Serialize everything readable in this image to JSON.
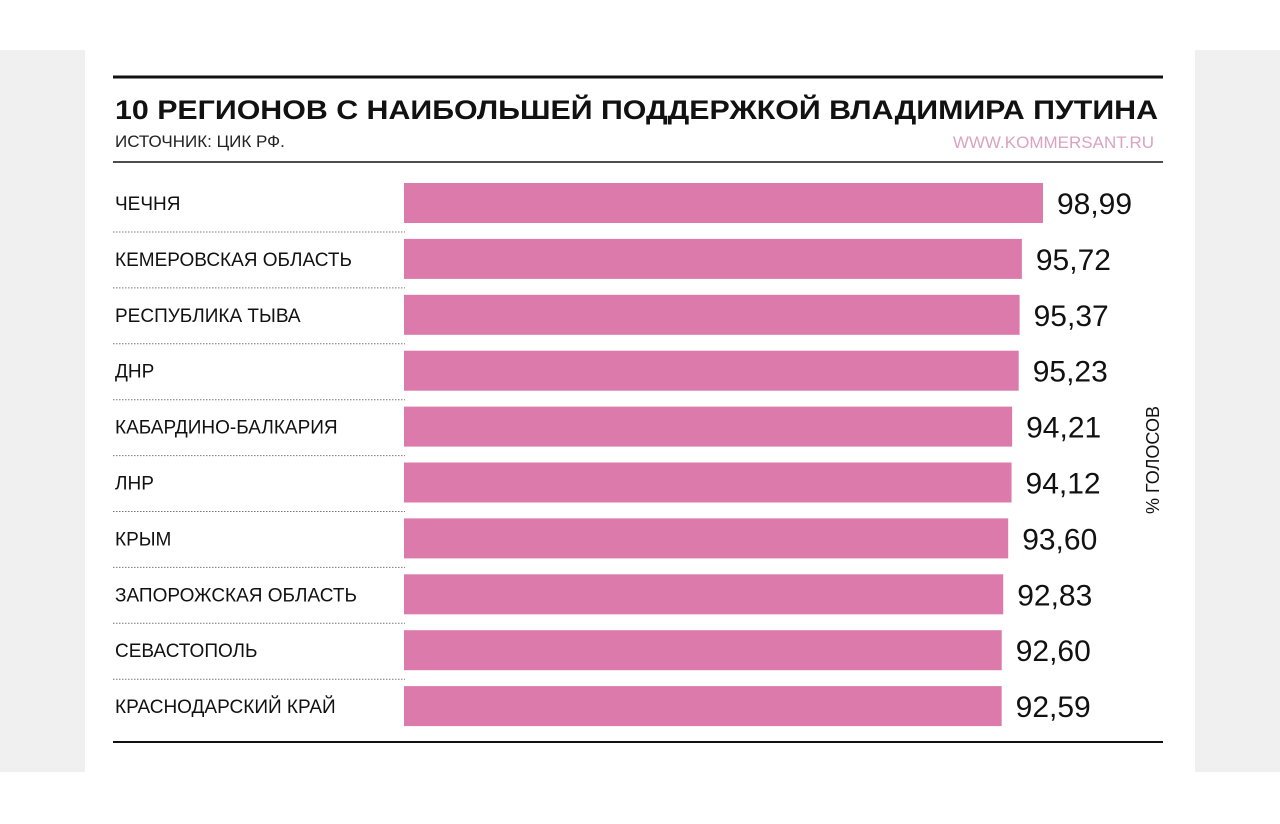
{
  "chart_data": {
    "type": "bar",
    "orientation": "horizontal",
    "title": "10 РЕГИОНОВ С НАИБОЛЬШЕЙ ПОДДЕРЖКОЙ ВЛАДИМИРА ПУТИНА",
    "subtitle": "ИСТОЧНИК: ЦИК РФ.",
    "credit": "WWW.KOMMERSANT.RU",
    "ylabel": "% ГОЛОСОВ",
    "categories": [
      "ЧЕЧНЯ",
      "КЕМЕРОВСКАЯ ОБЛАСТЬ",
      "РЕСПУБЛИКА ТЫВА",
      "ДНР",
      "КАБАРДИНО-БАЛКАРИЯ",
      "ЛНР",
      "КРЫМ",
      "ЗАПОРОЖСКАЯ ОБЛАСТЬ",
      "СЕВАСТОПОЛЬ",
      "КРАСНОДАРСКИЙ КРАЙ"
    ],
    "values": [
      98.99,
      95.72,
      95.37,
      95.23,
      94.21,
      94.12,
      93.6,
      92.83,
      92.6,
      92.59
    ],
    "value_labels": [
      "98,99",
      "95,72",
      "95,37",
      "95,23",
      "94,21",
      "94,12",
      "93,60",
      "92,83",
      "92,60",
      "92,59"
    ],
    "xlim": [
      0,
      100
    ],
    "grid": false,
    "colors": {
      "bar": "#dc7aab",
      "credit": "#d9a3c2",
      "text": "#111111"
    }
  }
}
